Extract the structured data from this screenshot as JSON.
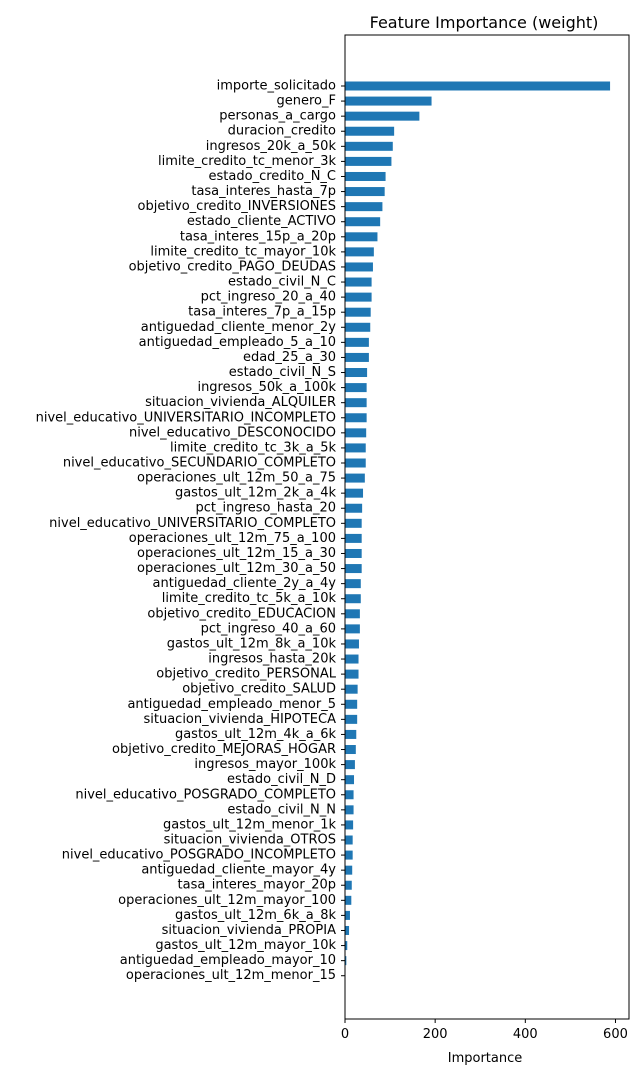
{
  "chart_data": {
    "type": "bar",
    "orientation": "horizontal",
    "title": "Feature Importance (weight)",
    "xlabel": "Importance",
    "ylabel": "",
    "xlim": [
      0,
      630
    ],
    "xticks": [
      0,
      200,
      400,
      600
    ],
    "grid": false,
    "bar_color": "#1f77b4",
    "categories": [
      "importe_solicitado",
      "genero_F",
      "personas_a_cargo",
      "duracion_credito",
      "ingresos_20k_a_50k",
      "limite_credito_tc_menor_3k",
      "estado_credito_N_C",
      "tasa_interes_hasta_7p",
      "objetivo_credito_INVERSIONES",
      "estado_cliente_ACTIVO",
      "tasa_interes_15p_a_20p",
      "limite_credito_tc_mayor_10k",
      "objetivo_credito_PAGO_DEUDAS",
      "estado_civil_N_C",
      "pct_ingreso_20_a_40",
      "tasa_interes_7p_a_15p",
      "antiguedad_cliente_menor_2y",
      "antiguedad_empleado_5_a_10",
      "edad_25_a_30",
      "estado_civil_N_S",
      "ingresos_50k_a_100k",
      "situacion_vivienda_ALQUILER",
      "nivel_educativo_UNIVERSITARIO_INCOMPLETO",
      "nivel_educativo_DESCONOCIDO",
      "limite_credito_tc_3k_a_5k",
      "nivel_educativo_SECUNDARIO_COMPLETO",
      "operaciones_ult_12m_50_a_75",
      "gastos_ult_12m_2k_a_4k",
      "pct_ingreso_hasta_20",
      "nivel_educativo_UNIVERSITARIO_COMPLETO",
      "operaciones_ult_12m_75_a_100",
      "operaciones_ult_12m_15_a_30",
      "operaciones_ult_12m_30_a_50",
      "antiguedad_cliente_2y_a_4y",
      "limite_credito_tc_5k_a_10k",
      "objetivo_credito_EDUCACION",
      "pct_ingreso_40_a_60",
      "gastos_ult_12m_8k_a_10k",
      "ingresos_hasta_20k",
      "objetivo_credito_PERSONAL",
      "objetivo_credito_SALUD",
      "antiguedad_empleado_menor_5",
      "situacion_vivienda_HIPOTECA",
      "gastos_ult_12m_4k_a_6k",
      "objetivo_credito_MEJORAS_HOGAR",
      "ingresos_mayor_100k",
      "estado_civil_N_D",
      "nivel_educativo_POSGRADO_COMPLETO",
      "estado_civil_N_N",
      "gastos_ult_12m_menor_1k",
      "situacion_vivienda_OTROS",
      "nivel_educativo_POSGRADO_INCOMPLETO",
      "antiguedad_cliente_mayor_4y",
      "tasa_interes_mayor_20p",
      "operaciones_ult_12m_mayor_100",
      "gastos_ult_12m_6k_a_8k",
      "situacion_vivienda_PROPIA",
      "gastos_ult_12m_mayor_10k",
      "antiguedad_empleado_mayor_10",
      "operaciones_ult_12m_menor_15"
    ],
    "values": [
      588,
      192,
      165,
      109,
      106,
      103,
      90,
      88,
      83,
      78,
      72,
      64,
      62,
      59,
      59,
      57,
      56,
      53,
      53,
      49,
      48,
      48,
      48,
      47,
      46,
      46,
      44,
      40,
      38,
      37,
      37,
      37,
      37,
      35,
      35,
      33,
      33,
      31,
      30,
      30,
      28,
      27,
      27,
      25,
      24,
      22,
      20,
      19,
      19,
      18,
      17,
      17,
      16,
      15,
      14,
      11,
      9,
      5,
      3,
      1
    ]
  }
}
